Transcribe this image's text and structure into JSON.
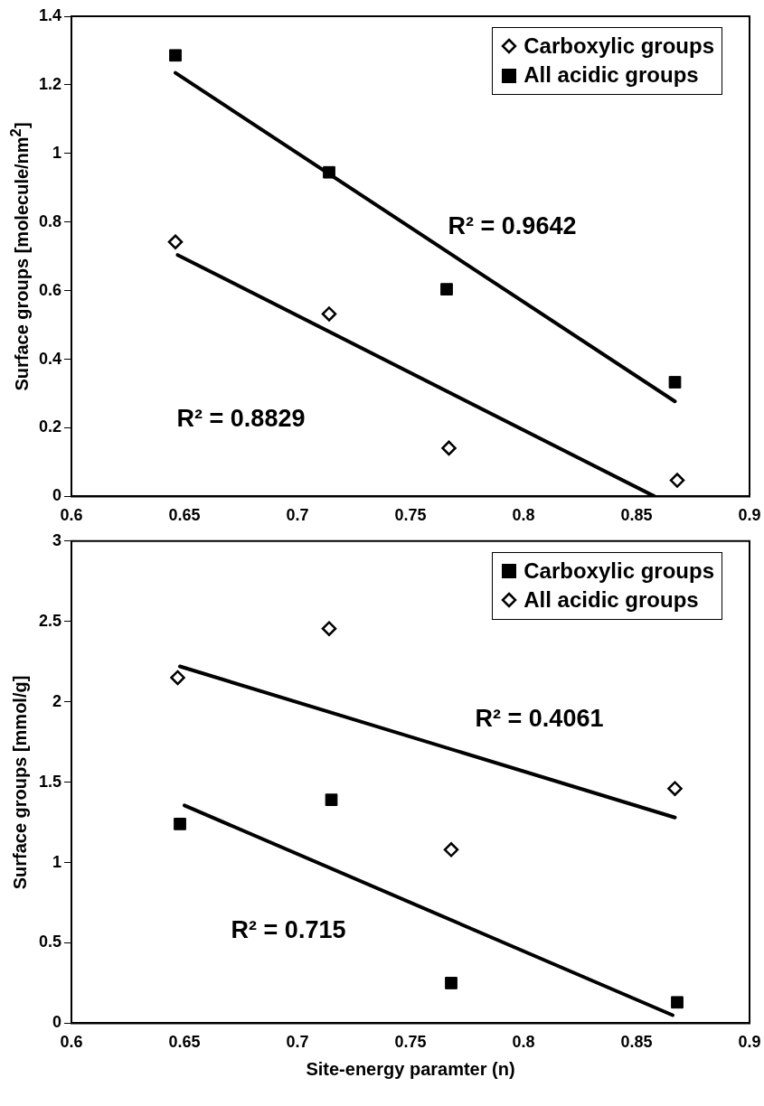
{
  "chart_data": [
    {
      "type": "scatter",
      "ylabel": "Surface groups [molecule/nm$^{2}$]",
      "xlim": [
        0.6,
        0.9
      ],
      "xticks": [
        0.6,
        0.65,
        0.7,
        0.75,
        0.8,
        0.85,
        0.9
      ],
      "ylim": [
        0,
        1.4
      ],
      "yticks": [
        0,
        0.2,
        0.4,
        0.6,
        0.8,
        1,
        1.2,
        1.4
      ],
      "grid": false,
      "legend": "top right",
      "series": [
        {
          "name": "Carboxylic groups",
          "color": "#000000",
          "marker": "diamond",
          "x": [
            0.646,
            0.714,
            0.767,
            0.868
          ],
          "values": [
            0.742,
            0.532,
            0.141,
            0.047
          ]
        },
        {
          "name": "All acidic groups",
          "color": "#000000",
          "marker": "square",
          "x": [
            0.646,
            0.714,
            0.766,
            0.867
          ],
          "values": [
            1.286,
            0.945,
            0.604,
            0.333
          ]
        },
        {
          "type": "line",
          "color": "#000000",
          "x": [
            0.647,
            0.858
          ],
          "values": [
            0.704,
            0
          ]
        },
        {
          "type": "line",
          "color": "#000000",
          "x": [
            0.646,
            0.867
          ],
          "values": [
            1.235,
            0.277
          ]
        }
      ],
      "annotations": [
        "R² = 0.9642",
        "R² = 0.8829"
      ]
    },
    {
      "type": "scatter",
      "xlabel": "Site-energy paramter (n)",
      "ylabel": "Surface groups [mmol/g]",
      "xlim": [
        0.6,
        0.9
      ],
      "xticks": [
        0.6,
        0.65,
        0.7,
        0.75,
        0.8,
        0.85,
        0.9
      ],
      "ylim": [
        0,
        3
      ],
      "yticks": [
        0,
        0.5,
        1,
        1.5,
        2,
        2.5,
        3
      ],
      "grid": false,
      "legend": "top right",
      "series": [
        {
          "name": "Carboxylic groups",
          "color": "#000000",
          "marker": "square",
          "x": [
            0.648,
            0.715,
            0.768,
            0.868
          ],
          "values": [
            1.24,
            1.39,
            0.25,
            0.13
          ]
        },
        {
          "name": "All acidic groups",
          "color": "#000000",
          "marker": "diamond",
          "x": [
            0.647,
            0.714,
            0.768,
            0.867
          ],
          "values": [
            2.15,
            2.455,
            1.08,
            1.46
          ]
        },
        {
          "type": "line",
          "color": "#000000",
          "x": [
            0.65,
            0.866
          ],
          "values": [
            1.355,
            0.05
          ]
        },
        {
          "type": "line",
          "color": "#000000",
          "x": [
            0.648,
            0.867
          ],
          "values": [
            2.22,
            1.28
          ]
        }
      ],
      "annotations": [
        "R² = 0.4061",
        "R² = 0.715"
      ]
    }
  ]
}
